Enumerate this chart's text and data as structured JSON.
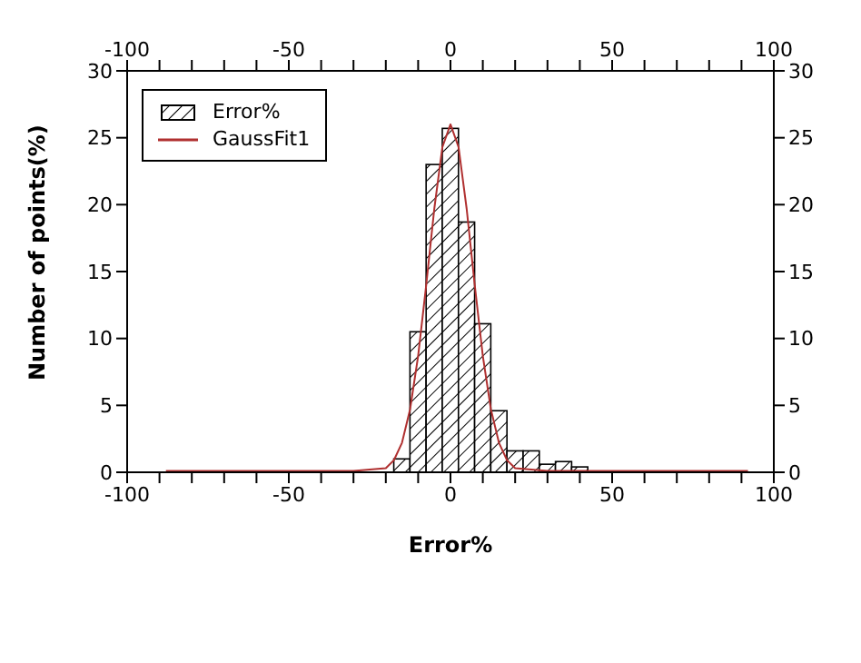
{
  "chart_data": {
    "type": "histogram",
    "xlabel": "Error%",
    "ylabel": "Number of points(%)",
    "bins": [
      -17.5,
      -12.5,
      -7.5,
      -2.5,
      2.5,
      7.5,
      12.5,
      17.5,
      22.5,
      27.5,
      32.5,
      37.5,
      42.5,
      47.5,
      52.5
    ],
    "series": [
      {
        "name": "Error%",
        "type": "histogram",
        "color": "#000000",
        "values": [
          1.0,
          10.5,
          23.0,
          25.7,
          18.7,
          11.1,
          4.6,
          1.6,
          1.6,
          0.6,
          0.8,
          0.4,
          null,
          null
        ]
      },
      {
        "name": "GaussFit1",
        "type": "line",
        "color": "#b03030",
        "x": [
          -88,
          -30,
          -20,
          -17.5,
          -15,
          -12.5,
          -10,
          -7.5,
          -5,
          -2.5,
          0,
          2.5,
          5,
          7.5,
          10,
          12.5,
          15,
          17.5,
          20,
          30,
          92
        ],
        "values": [
          0.1,
          0.1,
          0.3,
          0.9,
          2.2,
          4.7,
          8.7,
          14.0,
          19.7,
          24.3,
          26,
          24.3,
          19.7,
          14.0,
          8.7,
          4.7,
          2.2,
          0.9,
          0.3,
          0.1,
          0.1
        ]
      }
    ],
    "xlim": [
      -100,
      100
    ],
    "xticks": [
      -100,
      {
        "value": -90,
        "label": null
      },
      {
        "value": -80,
        "label": null
      },
      {
        "value": -70,
        "label": null
      },
      {
        "value": -60,
        "label": null
      },
      -50,
      {
        "value": -40,
        "label": null
      },
      {
        "value": -30,
        "label": null
      },
      {
        "value": -20,
        "label": null
      },
      {
        "value": -10,
        "label": null
      },
      0,
      {
        "value": 10,
        "label": null
      },
      {
        "value": 20,
        "label": null
      },
      {
        "value": 30,
        "label": null
      },
      {
        "value": 40,
        "label": null
      },
      50,
      {
        "value": 60,
        "label": null
      },
      {
        "value": 70,
        "label": null
      },
      {
        "value": 80,
        "label": null
      },
      {
        "value": 90,
        "label": null
      },
      100
    ],
    "x2lim": [
      -100,
      100
    ],
    "x2ticks": [
      -100,
      {
        "value": -90,
        "label": null
      },
      {
        "value": -80,
        "label": null
      },
      {
        "value": -70,
        "label": null
      },
      {
        "value": -60,
        "label": null
      },
      -50,
      {
        "value": -40,
        "label": null
      },
      {
        "value": -30,
        "label": null
      },
      {
        "value": -20,
        "label": null
      },
      {
        "value": -10,
        "label": null
      },
      0,
      {
        "value": 10,
        "label": null
      },
      {
        "value": 20,
        "label": null
      },
      {
        "value": 30,
        "label": null
      },
      {
        "value": 40,
        "label": null
      },
      50,
      {
        "value": 60,
        "label": null
      },
      {
        "value": 70,
        "label": null
      },
      {
        "value": 80,
        "label": null
      },
      {
        "value": 90,
        "label": null
      },
      100
    ],
    "ylim": [
      0,
      30
    ],
    "yticks": [
      0,
      5,
      10,
      15,
      20,
      25,
      30
    ],
    "y2lim": [
      0,
      30
    ],
    "y2ticks": [
      0,
      5,
      10,
      15,
      20,
      25,
      30
    ],
    "legend": "top left",
    "grid": false
  }
}
